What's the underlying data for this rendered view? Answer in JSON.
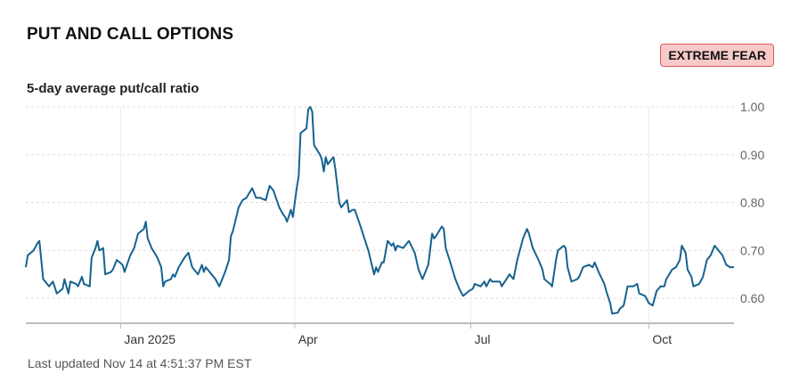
{
  "header": {
    "title": "PUT AND CALL OPTIONS",
    "badge": "EXTREME FEAR",
    "badge_color": "#f8c9c9"
  },
  "footer": {
    "updated": "Last updated Nov 14 at 4:51:37 PM EST"
  },
  "chart_data": {
    "type": "line",
    "title": "5-day average put/call ratio",
    "xlabel": "",
    "ylabel": "",
    "ylim": [
      0.55,
      1.0
    ],
    "yticks": [
      0.6,
      0.7,
      0.8,
      0.9,
      1.0
    ],
    "ytick_labels": [
      "0.60",
      "0.70",
      "0.80",
      "0.90",
      "1.00"
    ],
    "xticks": [
      {
        "x": "2025-01-01",
        "label": "Jan 2025"
      },
      {
        "x": "2025-04-01",
        "label": "Apr"
      },
      {
        "x": "2025-07-01",
        "label": "Jul"
      },
      {
        "x": "2025-10-01",
        "label": "Oct"
      }
    ],
    "xlim": [
      "2024-11-13",
      "2025-11-14"
    ],
    "grid": true,
    "line_color": "#16628f",
    "series": [
      {
        "name": "",
        "points": [
          [
            "2024-11-13",
            0.665
          ],
          [
            "2024-11-14",
            0.69
          ],
          [
            "2024-11-17",
            0.7
          ],
          [
            "2024-11-19",
            0.715
          ],
          [
            "2024-11-20",
            0.72
          ],
          [
            "2024-11-22",
            0.64
          ],
          [
            "2024-11-25",
            0.625
          ],
          [
            "2024-11-27",
            0.635
          ],
          [
            "2024-11-29",
            0.61
          ],
          [
            "2024-12-02",
            0.62
          ],
          [
            "2024-12-03",
            0.64
          ],
          [
            "2024-12-04",
            0.625
          ],
          [
            "2024-12-05",
            0.61
          ],
          [
            "2024-12-06",
            0.635
          ],
          [
            "2024-12-09",
            0.63
          ],
          [
            "2024-12-10",
            0.625
          ],
          [
            "2024-12-12",
            0.645
          ],
          [
            "2024-12-13",
            0.63
          ],
          [
            "2024-12-16",
            0.625
          ],
          [
            "2024-12-17",
            0.685
          ],
          [
            "2024-12-19",
            0.705
          ],
          [
            "2024-12-20",
            0.72
          ],
          [
            "2024-12-21",
            0.7
          ],
          [
            "2024-12-23",
            0.705
          ],
          [
            "2024-12-24",
            0.65
          ],
          [
            "2024-12-27",
            0.655
          ],
          [
            "2024-12-28",
            0.66
          ],
          [
            "2024-12-30",
            0.68
          ],
          [
            "2025-01-02",
            0.67
          ],
          [
            "2025-01-03",
            0.655
          ],
          [
            "2025-01-06",
            0.69
          ],
          [
            "2025-01-08",
            0.705
          ],
          [
            "2025-01-10",
            0.735
          ],
          [
            "2025-01-13",
            0.745
          ],
          [
            "2025-01-14",
            0.76
          ],
          [
            "2025-01-15",
            0.725
          ],
          [
            "2025-01-17",
            0.705
          ],
          [
            "2025-01-20",
            0.685
          ],
          [
            "2025-01-22",
            0.665
          ],
          [
            "2025-01-23",
            0.625
          ],
          [
            "2025-01-24",
            0.635
          ],
          [
            "2025-01-27",
            0.64
          ],
          [
            "2025-01-28",
            0.65
          ],
          [
            "2025-01-29",
            0.645
          ],
          [
            "2025-01-31",
            0.665
          ],
          [
            "2025-02-03",
            0.685
          ],
          [
            "2025-02-05",
            0.695
          ],
          [
            "2025-02-07",
            0.665
          ],
          [
            "2025-02-10",
            0.65
          ],
          [
            "2025-02-12",
            0.67
          ],
          [
            "2025-02-13",
            0.655
          ],
          [
            "2025-02-14",
            0.665
          ],
          [
            "2025-02-17",
            0.65
          ],
          [
            "2025-02-19",
            0.64
          ],
          [
            "2025-02-21",
            0.625
          ],
          [
            "2025-02-24",
            0.655
          ],
          [
            "2025-02-26",
            0.68
          ],
          [
            "2025-02-27",
            0.73
          ],
          [
            "2025-02-28",
            0.74
          ],
          [
            "2025-03-03",
            0.79
          ],
          [
            "2025-03-05",
            0.805
          ],
          [
            "2025-03-07",
            0.81
          ],
          [
            "2025-03-10",
            0.83
          ],
          [
            "2025-03-12",
            0.81
          ],
          [
            "2025-03-14",
            0.81
          ],
          [
            "2025-03-17",
            0.805
          ],
          [
            "2025-03-19",
            0.835
          ],
          [
            "2025-03-21",
            0.825
          ],
          [
            "2025-03-24",
            0.79
          ],
          [
            "2025-03-26",
            0.775
          ],
          [
            "2025-03-27",
            0.77
          ],
          [
            "2025-03-28",
            0.76
          ],
          [
            "2025-03-30",
            0.785
          ],
          [
            "2025-03-31",
            0.77
          ],
          [
            "2025-04-02",
            0.83
          ],
          [
            "2025-04-03",
            0.855
          ],
          [
            "2025-04-04",
            0.945
          ],
          [
            "2025-04-07",
            0.955
          ],
          [
            "2025-04-08",
            0.995
          ],
          [
            "2025-04-09",
            1.0
          ],
          [
            "2025-04-10",
            0.99
          ],
          [
            "2025-04-11",
            0.92
          ],
          [
            "2025-04-14",
            0.9
          ],
          [
            "2025-04-15",
            0.89
          ],
          [
            "2025-04-16",
            0.865
          ],
          [
            "2025-04-17",
            0.895
          ],
          [
            "2025-04-18",
            0.88
          ],
          [
            "2025-04-21",
            0.895
          ],
          [
            "2025-04-22",
            0.87
          ],
          [
            "2025-04-23",
            0.835
          ],
          [
            "2025-04-24",
            0.8
          ],
          [
            "2025-04-25",
            0.79
          ],
          [
            "2025-04-28",
            0.805
          ],
          [
            "2025-04-29",
            0.78
          ],
          [
            "2025-05-01",
            0.785
          ],
          [
            "2025-05-02",
            0.785
          ],
          [
            "2025-05-05",
            0.75
          ],
          [
            "2025-05-07",
            0.725
          ],
          [
            "2025-05-09",
            0.7
          ],
          [
            "2025-05-12",
            0.65
          ],
          [
            "2025-05-13",
            0.665
          ],
          [
            "2025-05-14",
            0.655
          ],
          [
            "2025-05-16",
            0.675
          ],
          [
            "2025-05-17",
            0.675
          ],
          [
            "2025-05-19",
            0.72
          ],
          [
            "2025-05-21",
            0.71
          ],
          [
            "2025-05-22",
            0.715
          ],
          [
            "2025-05-23",
            0.7
          ],
          [
            "2025-05-24",
            0.71
          ],
          [
            "2025-05-27",
            0.705
          ],
          [
            "2025-05-28",
            0.71
          ],
          [
            "2025-05-30",
            0.72
          ],
          [
            "2025-06-02",
            0.695
          ],
          [
            "2025-06-04",
            0.66
          ],
          [
            "2025-06-06",
            0.64
          ],
          [
            "2025-06-09",
            0.67
          ],
          [
            "2025-06-11",
            0.735
          ],
          [
            "2025-06-12",
            0.725
          ],
          [
            "2025-06-13",
            0.73
          ],
          [
            "2025-06-16",
            0.75
          ],
          [
            "2025-06-17",
            0.745
          ],
          [
            "2025-06-18",
            0.705
          ],
          [
            "2025-06-20",
            0.68
          ],
          [
            "2025-06-23",
            0.64
          ],
          [
            "2025-06-25",
            0.62
          ],
          [
            "2025-06-27",
            0.605
          ],
          [
            "2025-06-30",
            0.615
          ],
          [
            "2025-07-02",
            0.62
          ],
          [
            "2025-07-03",
            0.63
          ],
          [
            "2025-07-06",
            0.625
          ],
          [
            "2025-07-08",
            0.635
          ],
          [
            "2025-07-09",
            0.625
          ],
          [
            "2025-07-11",
            0.64
          ],
          [
            "2025-07-12",
            0.635
          ],
          [
            "2025-07-16",
            0.635
          ],
          [
            "2025-07-17",
            0.625
          ],
          [
            "2025-07-21",
            0.65
          ],
          [
            "2025-07-23",
            0.64
          ],
          [
            "2025-07-25",
            0.68
          ],
          [
            "2025-07-28",
            0.725
          ],
          [
            "2025-07-30",
            0.745
          ],
          [
            "2025-07-31",
            0.735
          ],
          [
            "2025-08-02",
            0.705
          ],
          [
            "2025-08-05",
            0.68
          ],
          [
            "2025-08-07",
            0.66
          ],
          [
            "2025-08-08",
            0.64
          ],
          [
            "2025-08-11",
            0.63
          ],
          [
            "2025-08-12",
            0.625
          ],
          [
            "2025-08-14",
            0.68
          ],
          [
            "2025-08-15",
            0.7
          ],
          [
            "2025-08-18",
            0.71
          ],
          [
            "2025-08-19",
            0.705
          ],
          [
            "2025-08-20",
            0.665
          ],
          [
            "2025-08-22",
            0.635
          ],
          [
            "2025-08-25",
            0.64
          ],
          [
            "2025-08-26",
            0.645
          ],
          [
            "2025-08-28",
            0.665
          ],
          [
            "2025-08-31",
            0.67
          ],
          [
            "2025-09-02",
            0.665
          ],
          [
            "2025-09-03",
            0.675
          ],
          [
            "2025-09-05",
            0.655
          ],
          [
            "2025-09-08",
            0.63
          ],
          [
            "2025-09-09",
            0.615
          ],
          [
            "2025-09-11",
            0.59
          ],
          [
            "2025-09-12",
            0.568
          ],
          [
            "2025-09-15",
            0.57
          ],
          [
            "2025-09-16",
            0.578
          ],
          [
            "2025-09-18",
            0.585
          ],
          [
            "2025-09-19",
            0.605
          ],
          [
            "2025-09-20",
            0.625
          ],
          [
            "2025-09-23",
            0.625
          ],
          [
            "2025-09-25",
            0.63
          ],
          [
            "2025-09-26",
            0.61
          ],
          [
            "2025-09-29",
            0.605
          ],
          [
            "2025-10-01",
            0.59
          ],
          [
            "2025-10-03",
            0.585
          ],
          [
            "2025-10-05",
            0.615
          ],
          [
            "2025-10-07",
            0.625
          ],
          [
            "2025-10-09",
            0.625
          ],
          [
            "2025-10-10",
            0.64
          ],
          [
            "2025-10-13",
            0.66
          ],
          [
            "2025-10-15",
            0.665
          ],
          [
            "2025-10-17",
            0.68
          ],
          [
            "2025-10-18",
            0.71
          ],
          [
            "2025-10-20",
            0.695
          ],
          [
            "2025-10-21",
            0.66
          ],
          [
            "2025-10-23",
            0.645
          ],
          [
            "2025-10-24",
            0.625
          ],
          [
            "2025-10-27",
            0.63
          ],
          [
            "2025-10-29",
            0.645
          ],
          [
            "2025-10-31",
            0.68
          ],
          [
            "2025-11-02",
            0.69
          ],
          [
            "2025-11-04",
            0.71
          ],
          [
            "2025-11-06",
            0.7
          ],
          [
            "2025-11-08",
            0.69
          ],
          [
            "2025-11-10",
            0.67
          ],
          [
            "2025-11-12",
            0.665
          ],
          [
            "2025-11-14",
            0.665
          ]
        ]
      }
    ]
  }
}
